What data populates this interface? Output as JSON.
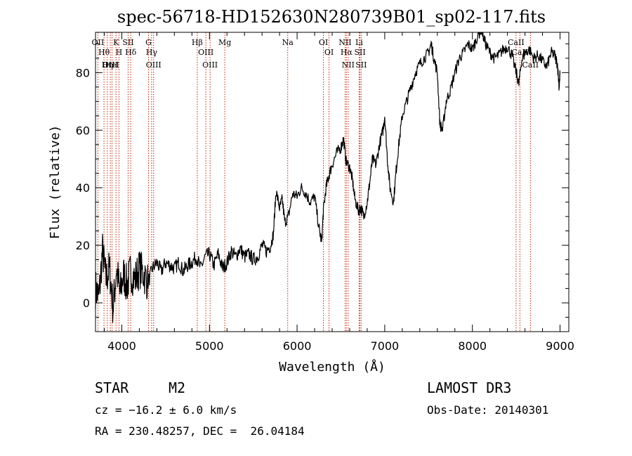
{
  "chart_data": {
    "type": "line",
    "title": "spec-56718-HD152630N280739B01_sp02-117.fits",
    "xlabel": "Wavelength (Å)",
    "ylabel": "Flux (relative)",
    "xlim": [
      3700,
      9100
    ],
    "ylim": [
      -10,
      94
    ],
    "xticks": [
      4000,
      5000,
      6000,
      7000,
      8000,
      9000
    ],
    "yticks": [
      0,
      20,
      40,
      60,
      80
    ],
    "grid": false,
    "line_color": "#000000",
    "marker_color": "#cc2200",
    "series": [
      {
        "x": [
          3700,
          3740,
          3780,
          3820,
          3860,
          3900,
          3940,
          3980,
          4020,
          4060,
          4100,
          4150,
          4200,
          4250,
          4300,
          4350,
          4400,
          4450,
          4500,
          4550,
          4600,
          4650,
          4700,
          4750,
          4800,
          4850,
          4900,
          4950,
          5000,
          5050,
          5100,
          5150,
          5200,
          5250,
          5300,
          5350,
          5400,
          5450,
          5500,
          5550,
          5600,
          5650,
          5700,
          5730,
          5760,
          5800,
          5830,
          5860,
          5900,
          5950,
          6000,
          6050,
          6100,
          6150,
          6200,
          6250,
          6280,
          6300,
          6330,
          6360,
          6400,
          6450,
          6500,
          6530,
          6560,
          6600,
          6630,
          6660,
          6700,
          6730,
          6760,
          6800,
          6830,
          6860,
          6900,
          6940,
          6980,
          7000,
          7030,
          7060,
          7100,
          7130,
          7160,
          7200,
          7250,
          7300,
          7350,
          7400,
          7450,
          7500,
          7530,
          7560,
          7600,
          7630,
          7660,
          7700,
          7750,
          7800,
          7850,
          7900,
          7950,
          8000,
          8050,
          8100,
          8150,
          8200,
          8250,
          8300,
          8350,
          8400,
          8450,
          8500,
          8530,
          8560,
          8600,
          8650,
          8700,
          8750,
          8800,
          8850,
          8900,
          8940,
          8970,
          8990,
          9000
        ],
        "values": [
          5,
          2,
          18,
          8,
          12,
          -2,
          12,
          3,
          10,
          6,
          11,
          8,
          12,
          10,
          7,
          12,
          14,
          11,
          14,
          13,
          12,
          14,
          11,
          13,
          14,
          16,
          12,
          16,
          17,
          13,
          17,
          12,
          14,
          18,
          16,
          19,
          16,
          17,
          15,
          16,
          20,
          18,
          20,
          24,
          39,
          33,
          36,
          28,
          30,
          38,
          37,
          40,
          38,
          35,
          37,
          26,
          21,
          32,
          40,
          44,
          48,
          52,
          54,
          57,
          49,
          47,
          43,
          36,
          32,
          33,
          30,
          35,
          42,
          50,
          48,
          55,
          60,
          65,
          50,
          40,
          35,
          46,
          55,
          65,
          70,
          75,
          80,
          83,
          85,
          87,
          90,
          85,
          80,
          62,
          60,
          70,
          74,
          80,
          85,
          87,
          90,
          88,
          92,
          95,
          90,
          87,
          85,
          86,
          88,
          89,
          86,
          80,
          76,
          84,
          87,
          88,
          85,
          86,
          84,
          82,
          87,
          86,
          83,
          75,
          80
        ]
      }
    ],
    "lines": [
      {
        "name": "Hθ",
        "x": 3797
      },
      {
        "name": "OII",
        "x": 3727
      },
      {
        "name": "OIII",
        "x": 3869
      },
      {
        "name": "K",
        "x": 3934
      },
      {
        "name": "HeI",
        "x": 3889
      },
      {
        "name": "Hη",
        "x": 3835
      },
      {
        "name": "SII",
        "x": 4072
      },
      {
        "name": "H",
        "x": 3968
      },
      {
        "name": "Hδ",
        "x": 4102
      },
      {
        "name": "OIII",
        "x": 4363
      },
      {
        "name": "Hγ",
        "x": 4340
      },
      {
        "name": "G",
        "x": 4305
      },
      {
        "name": "Hβ",
        "x": 4861
      },
      {
        "name": "OIII",
        "x": 5007
      },
      {
        "name": "OIII",
        "x": 4959
      },
      {
        "name": "Mg",
        "x": 5175
      },
      {
        "name": "Na",
        "x": 5893
      },
      {
        "name": "OI",
        "x": 6300
      },
      {
        "name": "OI",
        "x": 6364
      },
      {
        "name": "Hα",
        "x": 6563
      },
      {
        "name": "NII",
        "x": 6548
      },
      {
        "name": "NII",
        "x": 6583
      },
      {
        "name": "SII",
        "x": 6717
      },
      {
        "name": "Li",
        "x": 6708
      },
      {
        "name": "SII",
        "x": 6731
      },
      {
        "name": "CaII",
        "x": 8542
      },
      {
        "name": "CaII",
        "x": 8498
      },
      {
        "name": "CaII",
        "x": 8662
      }
    ]
  },
  "info": {
    "class": "STAR",
    "subclass": "M2",
    "survey": "LAMOST DR3",
    "cz": "cz = −16.2 ± 6.0 km/s",
    "obs_date": "Obs-Date: 20140301",
    "coords": "RA = 230.48257, DEC =  26.04184"
  }
}
